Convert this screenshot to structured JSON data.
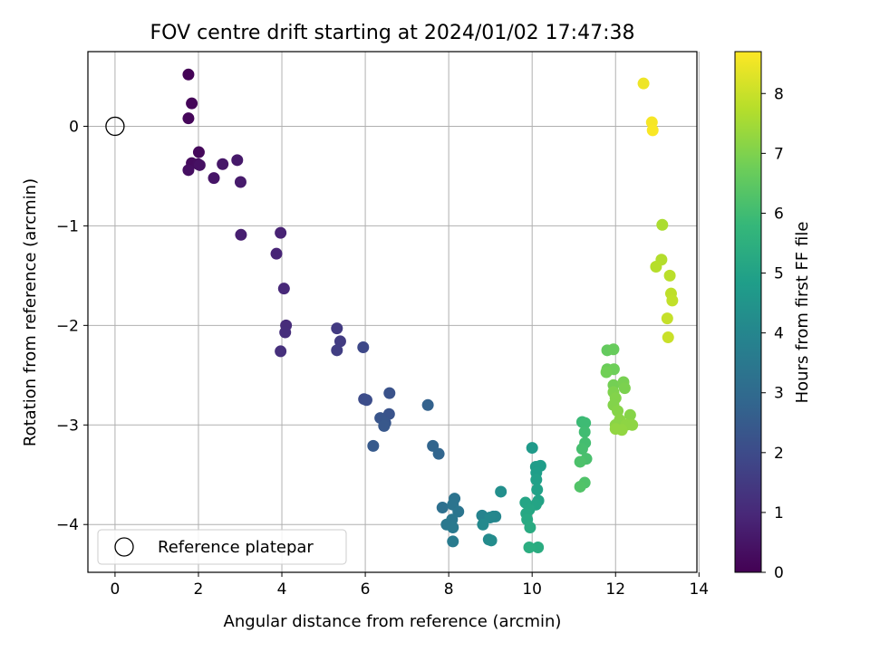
{
  "chart_data": {
    "type": "scatter",
    "title": "FOV centre drift starting at 2024/01/02 17:47:38",
    "xlabel": "Angular distance from reference (arcmin)",
    "ylabel": "Rotation from reference (arcmin)",
    "xlim": [
      -0.65,
      13.95
    ],
    "ylim": [
      -4.48,
      0.75
    ],
    "x_ticks": [
      0,
      2,
      4,
      6,
      8,
      10,
      12,
      14
    ],
    "y_ticks": [
      -4,
      -3,
      -2,
      -1,
      0
    ],
    "x_tick_labels": [
      "0",
      "2",
      "4",
      "6",
      "8",
      "10",
      "12",
      "14"
    ],
    "y_tick_labels": [
      "−4",
      "−3",
      "−2",
      "−1",
      "0"
    ],
    "grid": true,
    "legend": {
      "position": "lower-left",
      "entries": [
        "Reference platepar"
      ]
    },
    "reference_point": {
      "x": 0,
      "y": 0,
      "marker": "open-circle"
    },
    "colorbar": {
      "label": "Hours from first FF file",
      "range": [
        0,
        8.7
      ],
      "ticks": [
        0,
        1,
        2,
        3,
        4,
        5,
        6,
        7,
        8
      ],
      "tick_labels": [
        "0",
        "1",
        "2",
        "3",
        "4",
        "5",
        "6",
        "7",
        "8"
      ],
      "colormap": "viridis"
    },
    "colormap_stops": [
      "#440154",
      "#482878",
      "#3e4989",
      "#31688e",
      "#26828e",
      "#1f9e89",
      "#35b779",
      "#6ece58",
      "#b5de2b",
      "#fde725"
    ],
    "series": [
      {
        "points": [
          [
            1.76,
            0.52,
            0.05
          ],
          [
            1.84,
            0.23,
            0.1
          ],
          [
            1.76,
            0.08,
            0.15
          ],
          [
            2.01,
            -0.26,
            0.2
          ],
          [
            1.84,
            -0.37,
            0.25
          ],
          [
            1.99,
            -0.38,
            0.3
          ],
          [
            1.76,
            -0.44,
            0.35
          ],
          [
            2.03,
            -0.39,
            0.4
          ],
          [
            2.37,
            -0.52,
            0.5
          ],
          [
            2.58,
            -0.38,
            0.55
          ],
          [
            2.93,
            -0.34,
            0.6
          ],
          [
            3.01,
            -0.56,
            0.65
          ],
          [
            3.02,
            -1.09,
            0.75
          ],
          [
            3.97,
            -1.07,
            0.85
          ],
          [
            3.87,
            -1.28,
            0.9
          ],
          [
            4.05,
            -1.63,
            1.0
          ],
          [
            4.1,
            -2.0,
            1.1
          ],
          [
            4.08,
            -2.07,
            1.15
          ],
          [
            3.97,
            -2.26,
            1.2
          ],
          [
            5.32,
            -2.03,
            1.5
          ],
          [
            5.4,
            -2.16,
            1.55
          ],
          [
            5.32,
            -2.25,
            1.6
          ],
          [
            5.95,
            -2.22,
            1.9
          ],
          [
            5.97,
            -2.74,
            2.0
          ],
          [
            6.03,
            -2.75,
            2.05
          ],
          [
            6.58,
            -2.68,
            2.2
          ],
          [
            6.57,
            -2.89,
            2.25
          ],
          [
            6.36,
            -2.93,
            2.3
          ],
          [
            6.48,
            -2.98,
            2.35
          ],
          [
            6.45,
            -3.01,
            2.4
          ],
          [
            6.19,
            -3.21,
            2.45
          ],
          [
            7.5,
            -2.8,
            2.7
          ],
          [
            7.62,
            -3.21,
            2.8
          ],
          [
            7.76,
            -3.29,
            2.85
          ],
          [
            7.85,
            -3.83,
            3.2
          ],
          [
            8.14,
            -3.74,
            3.3
          ],
          [
            8.1,
            -3.8,
            3.35
          ],
          [
            8.23,
            -3.87,
            3.4
          ],
          [
            8.08,
            -3.95,
            3.45
          ],
          [
            7.95,
            -4.0,
            3.5
          ],
          [
            8.1,
            -4.03,
            3.55
          ],
          [
            8.1,
            -4.17,
            3.6
          ],
          [
            8.8,
            -3.91,
            3.9
          ],
          [
            9.07,
            -3.92,
            3.95
          ],
          [
            9.12,
            -3.92,
            4.0
          ],
          [
            8.99,
            -3.93,
            4.05
          ],
          [
            8.82,
            -4.0,
            4.1
          ],
          [
            8.96,
            -4.15,
            4.15
          ],
          [
            9.02,
            -4.16,
            4.2
          ],
          [
            9.25,
            -3.67,
            4.3
          ],
          [
            10.0,
            -3.23,
            4.7
          ],
          [
            10.09,
            -3.42,
            4.75
          ],
          [
            10.2,
            -3.41,
            4.8
          ],
          [
            10.1,
            -3.48,
            4.85
          ],
          [
            10.1,
            -3.55,
            4.9
          ],
          [
            10.12,
            -3.65,
            4.95
          ],
          [
            10.15,
            -3.76,
            5.0
          ],
          [
            10.09,
            -3.8,
            5.05
          ],
          [
            9.84,
            -3.78,
            5.1
          ],
          [
            9.93,
            -3.85,
            5.15
          ],
          [
            9.86,
            -3.89,
            5.2
          ],
          [
            9.88,
            -3.95,
            5.25
          ],
          [
            9.95,
            -4.03,
            5.3
          ],
          [
            10.14,
            -4.23,
            5.35
          ],
          [
            9.93,
            -4.23,
            5.4
          ],
          [
            11.2,
            -2.97,
            5.9
          ],
          [
            11.27,
            -2.98,
            5.95
          ],
          [
            11.26,
            -3.07,
            6.0
          ],
          [
            11.27,
            -3.18,
            6.05
          ],
          [
            11.2,
            -3.24,
            6.1
          ],
          [
            11.3,
            -3.34,
            6.15
          ],
          [
            11.15,
            -3.37,
            6.2
          ],
          [
            11.26,
            -3.58,
            6.25
          ],
          [
            11.15,
            -3.62,
            6.3
          ],
          [
            11.8,
            -2.25,
            6.6
          ],
          [
            11.95,
            -2.24,
            6.65
          ],
          [
            11.8,
            -2.44,
            6.7
          ],
          [
            11.96,
            -2.44,
            6.75
          ],
          [
            11.78,
            -2.47,
            6.8
          ],
          [
            11.95,
            -2.6,
            6.85
          ],
          [
            12.19,
            -2.57,
            6.9
          ],
          [
            12.22,
            -2.63,
            6.95
          ],
          [
            11.95,
            -2.67,
            7.0
          ],
          [
            12.0,
            -2.73,
            7.05
          ],
          [
            11.95,
            -2.8,
            7.05
          ],
          [
            12.05,
            -2.86,
            7.1
          ],
          [
            12.35,
            -2.9,
            7.1
          ],
          [
            12.1,
            -2.95,
            7.15
          ],
          [
            12.0,
            -3.0,
            7.15
          ],
          [
            12.25,
            -3.0,
            7.2
          ],
          [
            12.4,
            -3.0,
            7.2
          ],
          [
            12.0,
            -3.04,
            7.25
          ],
          [
            12.15,
            -3.05,
            7.25
          ],
          [
            13.12,
            -0.99,
            7.6
          ],
          [
            13.1,
            -1.34,
            7.7
          ],
          [
            12.97,
            -1.41,
            7.75
          ],
          [
            13.3,
            -1.5,
            7.8
          ],
          [
            13.33,
            -1.68,
            7.85
          ],
          [
            13.36,
            -1.75,
            7.9
          ],
          [
            13.24,
            -1.93,
            7.95
          ],
          [
            13.26,
            -2.12,
            8.0
          ],
          [
            12.67,
            0.43,
            8.5
          ],
          [
            12.87,
            0.04,
            8.6
          ],
          [
            12.89,
            -0.04,
            8.65
          ]
        ]
      }
    ]
  }
}
